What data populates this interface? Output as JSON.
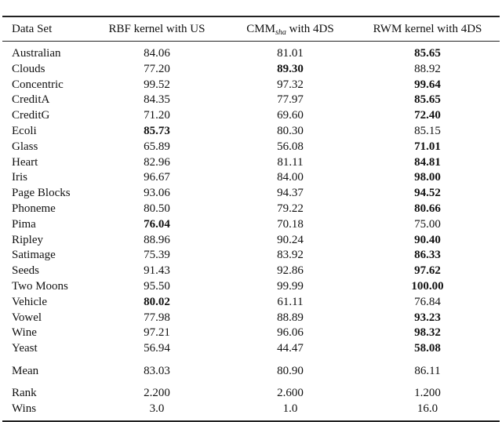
{
  "table": {
    "header": [
      "Data Set",
      "RBF kernel with US",
      [
        "CMM",
        "sha",
        " with 4DS"
      ],
      "RWM kernel with 4DS"
    ],
    "rows": [
      [
        "Australian",
        "84.06",
        "81.01",
        "85.65"
      ],
      [
        "Clouds",
        "77.20",
        "89.30",
        "88.92"
      ],
      [
        "Concentric",
        "99.52",
        "97.32",
        "99.64"
      ],
      [
        "CreditA",
        "84.35",
        "77.97",
        "85.65"
      ],
      [
        "CreditG",
        "71.20",
        "69.60",
        "72.40"
      ],
      [
        "Ecoli",
        "85.73",
        "80.30",
        "85.15"
      ],
      [
        "Glass",
        "65.89",
        "56.08",
        "71.01"
      ],
      [
        "Heart",
        "82.96",
        "81.11",
        "84.81"
      ],
      [
        "Iris",
        "96.67",
        "84.00",
        "98.00"
      ],
      [
        "Page Blocks",
        "93.06",
        "94.37",
        "94.52"
      ],
      [
        "Phoneme",
        "80.50",
        "79.22",
        "80.66"
      ],
      [
        "Pima",
        "76.04",
        "70.18",
        "75.00"
      ],
      [
        "Ripley",
        "88.96",
        "90.24",
        "90.40"
      ],
      [
        "Satimage",
        "75.39",
        "83.92",
        "86.33"
      ],
      [
        "Seeds",
        "91.43",
        "92.86",
        "97.62"
      ],
      [
        "Two Moons",
        "95.50",
        "99.99",
        "100.00"
      ],
      [
        "Vehicle",
        "80.02",
        "61.11",
        "76.84"
      ],
      [
        "Vowel",
        "77.98",
        "88.89",
        "93.23"
      ],
      [
        "Wine",
        "97.21",
        "96.06",
        "98.32"
      ],
      [
        "Yeast",
        "56.94",
        "44.47",
        "58.08"
      ]
    ],
    "bold": [
      3,
      2,
      3,
      3,
      3,
      1,
      3,
      3,
      3,
      3,
      3,
      1,
      3,
      3,
      3,
      3,
      1,
      3,
      3,
      3
    ],
    "summary_rows": [
      [
        "Mean",
        "83.03",
        "80.90",
        "86.11"
      ],
      [
        "Rank",
        "2.200",
        "2.600",
        "1.200"
      ],
      [
        "Wins",
        "3.0",
        "1.0",
        "16.0"
      ]
    ]
  }
}
